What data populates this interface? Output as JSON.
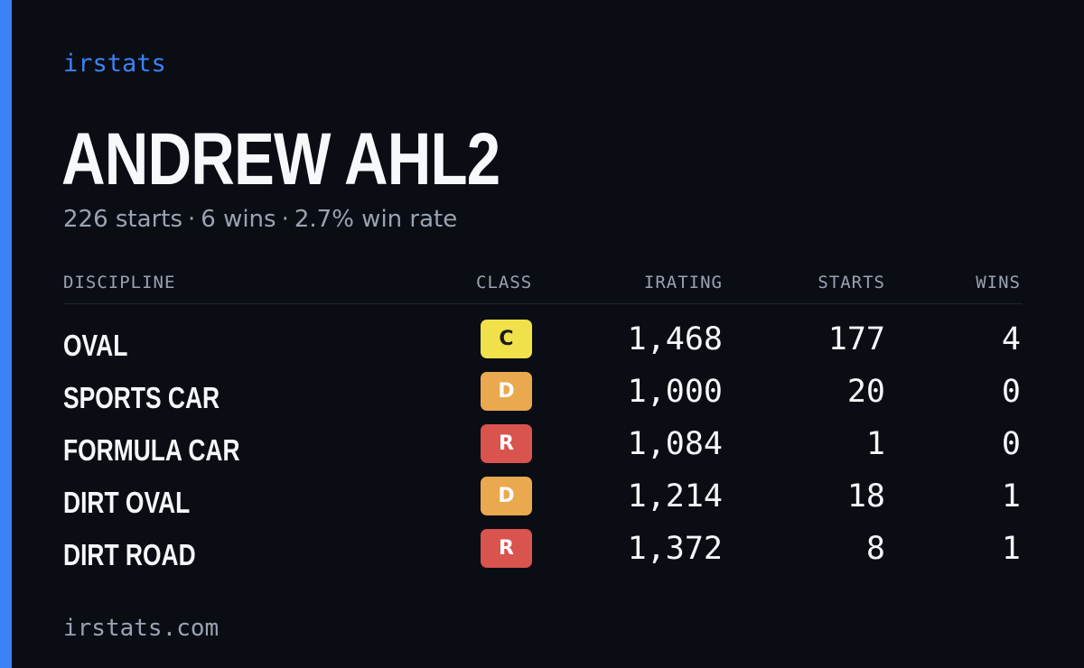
{
  "brand": "irstats",
  "driver": {
    "name": "ANDREW AHL2",
    "starts_text": "226 starts",
    "wins_text": "6 wins",
    "win_rate_text": "2.7% win rate",
    "separator": "·"
  },
  "table": {
    "headers": {
      "discipline": "DISCIPLINE",
      "class": "CLASS",
      "irating": "IRATING",
      "starts": "STARTS",
      "wins": "WINS"
    },
    "rows": [
      {
        "discipline": "OVAL",
        "class": "C",
        "irating": "1,468",
        "starts": "177",
        "wins": "4"
      },
      {
        "discipline": "SPORTS CAR",
        "class": "D",
        "irating": "1,000",
        "starts": "20",
        "wins": "0"
      },
      {
        "discipline": "FORMULA CAR",
        "class": "R",
        "irating": "1,084",
        "starts": "1",
        "wins": "0"
      },
      {
        "discipline": "DIRT OVAL",
        "class": "D",
        "irating": "1,214",
        "starts": "18",
        "wins": "1"
      },
      {
        "discipline": "DIRT ROAD",
        "class": "R",
        "irating": "1,372",
        "starts": "8",
        "wins": "1"
      }
    ]
  },
  "footer": "irstats.com",
  "colors": {
    "accent": "#3b82f6",
    "background": "#0a0d14",
    "class_c": "#f0e04a",
    "class_d": "#eaa84f",
    "class_r": "#d9534f"
  }
}
